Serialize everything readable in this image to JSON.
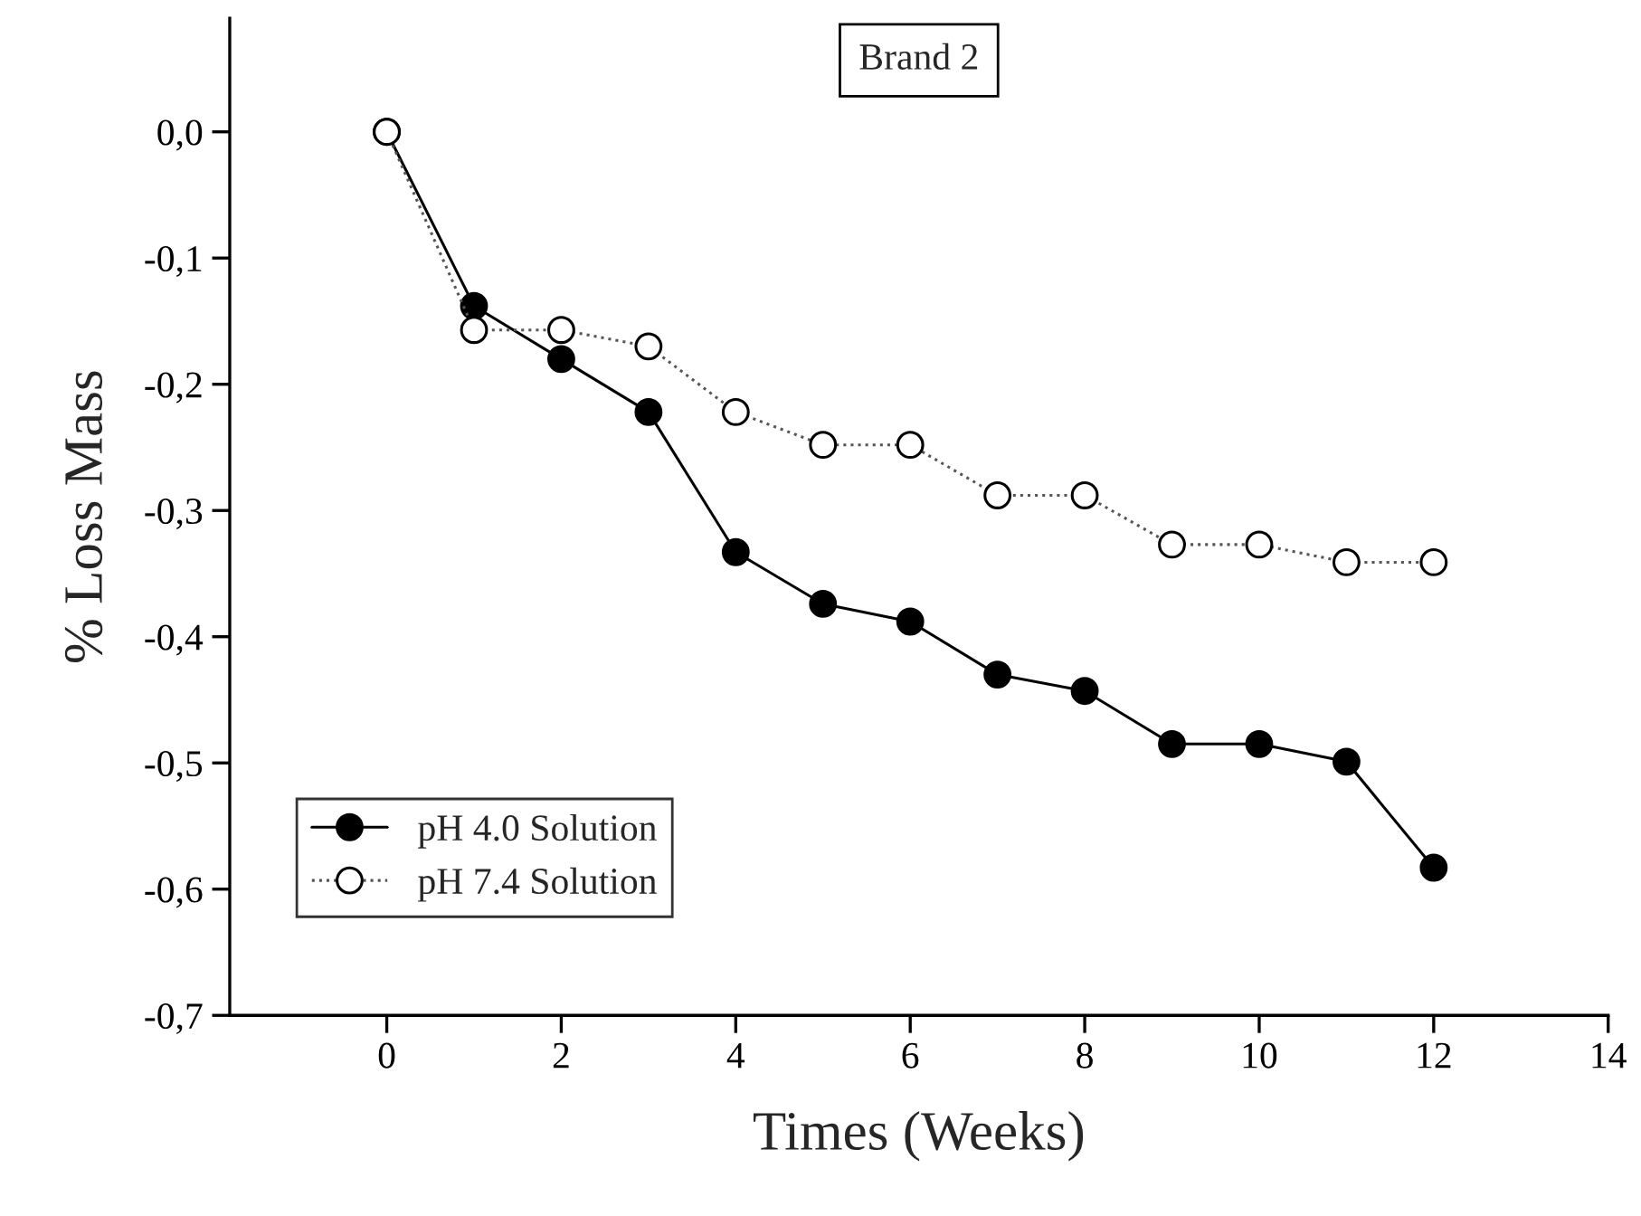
{
  "chart_data": {
    "type": "line",
    "title": "Brand 2",
    "xlabel": "Times (Weeks)",
    "ylabel": "% Loss Mass",
    "xlim": [
      -1.8,
      14
    ],
    "xticks": [
      0,
      2,
      4,
      6,
      8,
      10,
      12,
      14
    ],
    "ylim": [
      -0.7,
      0.09
    ],
    "yticks": [
      {
        "value": 0,
        "label": "0,0"
      },
      {
        "value": -0.1,
        "label": "-0,1"
      },
      {
        "value": -0.2,
        "label": "-0,2"
      },
      {
        "value": -0.3,
        "label": "-0,3"
      },
      {
        "value": -0.4,
        "label": "-0,4"
      },
      {
        "value": -0.5,
        "label": "-0,5"
      },
      {
        "value": -0.6,
        "label": "-0,6"
      },
      {
        "value": -0.7,
        "label": "-0,7"
      }
    ],
    "x": [
      0,
      1,
      2,
      3,
      4,
      5,
      6,
      7,
      8,
      9,
      10,
      11,
      12
    ],
    "series": [
      {
        "name": "pH 4.0 Solution",
        "color": "#000000",
        "marker": "circle",
        "line_style": "solid",
        "values": [
          0,
          -0.138,
          -0.18,
          -0.222,
          -0.333,
          -0.374,
          -0.388,
          -0.43,
          -0.443,
          -0.485,
          -0.485,
          -0.499,
          -0.583
        ]
      },
      {
        "name": "pH 7.4 Solution",
        "color": "#ffffff",
        "marker": "circle",
        "line_style": "dotted",
        "values": [
          0,
          -0.157,
          -0.157,
          -0.17,
          -0.222,
          -0.248,
          -0.248,
          -0.288,
          -0.288,
          -0.327,
          -0.327,
          -0.341,
          -0.341
        ]
      }
    ],
    "legend": "bottom left",
    "grid": false
  }
}
